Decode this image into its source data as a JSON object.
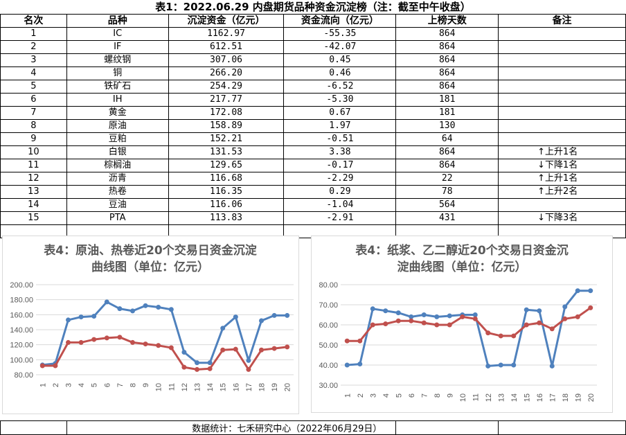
{
  "table_title": "表1：2022.06.29 内盘期货品种资金沉淀榜（注：截至中午收盘）",
  "headers": [
    "名次",
    "品种",
    "沉淀资金（亿元）",
    "资金流向（亿元）",
    "上榜天数",
    "备注"
  ],
  "rows": [
    {
      "rank": "1",
      "name": "IC",
      "capital": "1162.97",
      "flow": "-55.35",
      "days": "864",
      "note": "",
      "arrow": ""
    },
    {
      "rank": "2",
      "name": "IF",
      "capital": "612.51",
      "flow": "-42.07",
      "days": "864",
      "note": "",
      "arrow": ""
    },
    {
      "rank": "3",
      "name": "螺纹钢",
      "capital": "307.06",
      "flow": "0.45",
      "days": "864",
      "note": "",
      "arrow": ""
    },
    {
      "rank": "4",
      "name": "铜",
      "capital": "266.20",
      "flow": "0.46",
      "days": "864",
      "note": "",
      "arrow": ""
    },
    {
      "rank": "5",
      "name": "铁矿石",
      "capital": "254.29",
      "flow": "-6.52",
      "days": "864",
      "note": "",
      "arrow": ""
    },
    {
      "rank": "6",
      "name": "IH",
      "capital": "217.77",
      "flow": "-5.30",
      "days": "181",
      "note": "",
      "arrow": ""
    },
    {
      "rank": "7",
      "name": "黄金",
      "capital": "172.08",
      "flow": "0.67",
      "days": "181",
      "note": "",
      "arrow": ""
    },
    {
      "rank": "8",
      "name": "原油",
      "capital": "158.89",
      "flow": "1.97",
      "days": "130",
      "note": "",
      "arrow": ""
    },
    {
      "rank": "9",
      "name": "豆粕",
      "capital": "152.21",
      "flow": "-0.51",
      "days": "64",
      "note": "",
      "arrow": ""
    },
    {
      "rank": "10",
      "name": "白银",
      "capital": "131.53",
      "flow": "3.38",
      "days": "864",
      "note": "上升1名",
      "arrow": "↑"
    },
    {
      "rank": "11",
      "name": "棕榈油",
      "capital": "129.65",
      "flow": "-0.17",
      "days": "864",
      "note": "下降1名",
      "arrow": "↓"
    },
    {
      "rank": "12",
      "name": "沥青",
      "capital": "116.68",
      "flow": "-2.29",
      "days": "22",
      "note": "上升1名",
      "arrow": "↑"
    },
    {
      "rank": "13",
      "name": "热卷",
      "capital": "116.35",
      "flow": "0.29",
      "days": "78",
      "note": "上升2名",
      "arrow": "↑"
    },
    {
      "rank": "14",
      "name": "豆油",
      "capital": "116.06",
      "flow": "-1.04",
      "days": "564",
      "note": "",
      "arrow": ""
    },
    {
      "rank": "15",
      "name": "PTA",
      "capital": "113.83",
      "flow": "-2.91",
      "days": "431",
      "note": "下降3名",
      "arrow": "↓"
    }
  ],
  "footer": "数据统计：七禾研究中心（2022年06月29日）",
  "chart_data": [
    {
      "type": "line",
      "title_lines": [
        "表4：原油、热卷近20个交易日资金沉淀",
        "曲线图（单位：亿元）"
      ],
      "x": [
        1,
        2,
        3,
        4,
        5,
        6,
        7,
        8,
        9,
        10,
        11,
        12,
        13,
        14,
        15,
        16,
        17,
        18,
        19,
        20
      ],
      "ylim": [
        80,
        200
      ],
      "yticks": [
        "80.00",
        "100.00",
        "120.00",
        "140.00",
        "160.00",
        "180.00",
        "200.00"
      ],
      "grid": true,
      "series": [
        {
          "color": "#4f81bd",
          "values": [
            93,
            95,
            153,
            157,
            158,
            177,
            168,
            165,
            172,
            170,
            167,
            110,
            96,
            96,
            142,
            157,
            99,
            152,
            159,
            159
          ]
        },
        {
          "color": "#c0504d",
          "values": [
            92,
            92,
            123,
            123,
            127,
            129,
            130,
            123,
            121,
            119,
            116,
            90,
            87,
            88,
            113,
            114,
            87,
            113,
            115,
            117
          ]
        }
      ]
    },
    {
      "type": "line",
      "title_lines": [
        "表4：纸浆、乙二醇近20个交易日资金沉",
        "淀曲线图（单位：亿元）"
      ],
      "x": [
        1,
        2,
        3,
        4,
        5,
        6,
        7,
        8,
        9,
        10,
        11,
        12,
        13,
        14,
        15,
        16,
        17,
        18,
        19,
        20
      ],
      "ylim": [
        30,
        80
      ],
      "yticks": [
        "30.00",
        "40.00",
        "50.00",
        "60.00",
        "70.00",
        "80.00"
      ],
      "grid": true,
      "series": [
        {
          "color": "#4f81bd",
          "values": [
            40,
            40.5,
            68,
            67,
            66,
            64,
            65,
            64,
            64.5,
            65,
            65,
            39.5,
            40,
            40,
            67.5,
            67,
            39.5,
            69,
            77,
            77
          ]
        },
        {
          "color": "#c0504d",
          "values": [
            52,
            52,
            60,
            60.5,
            62,
            62,
            61,
            60,
            60,
            64,
            63,
            56,
            54.5,
            54.5,
            60,
            61,
            58,
            63,
            64,
            68.5
          ]
        }
      ]
    }
  ]
}
